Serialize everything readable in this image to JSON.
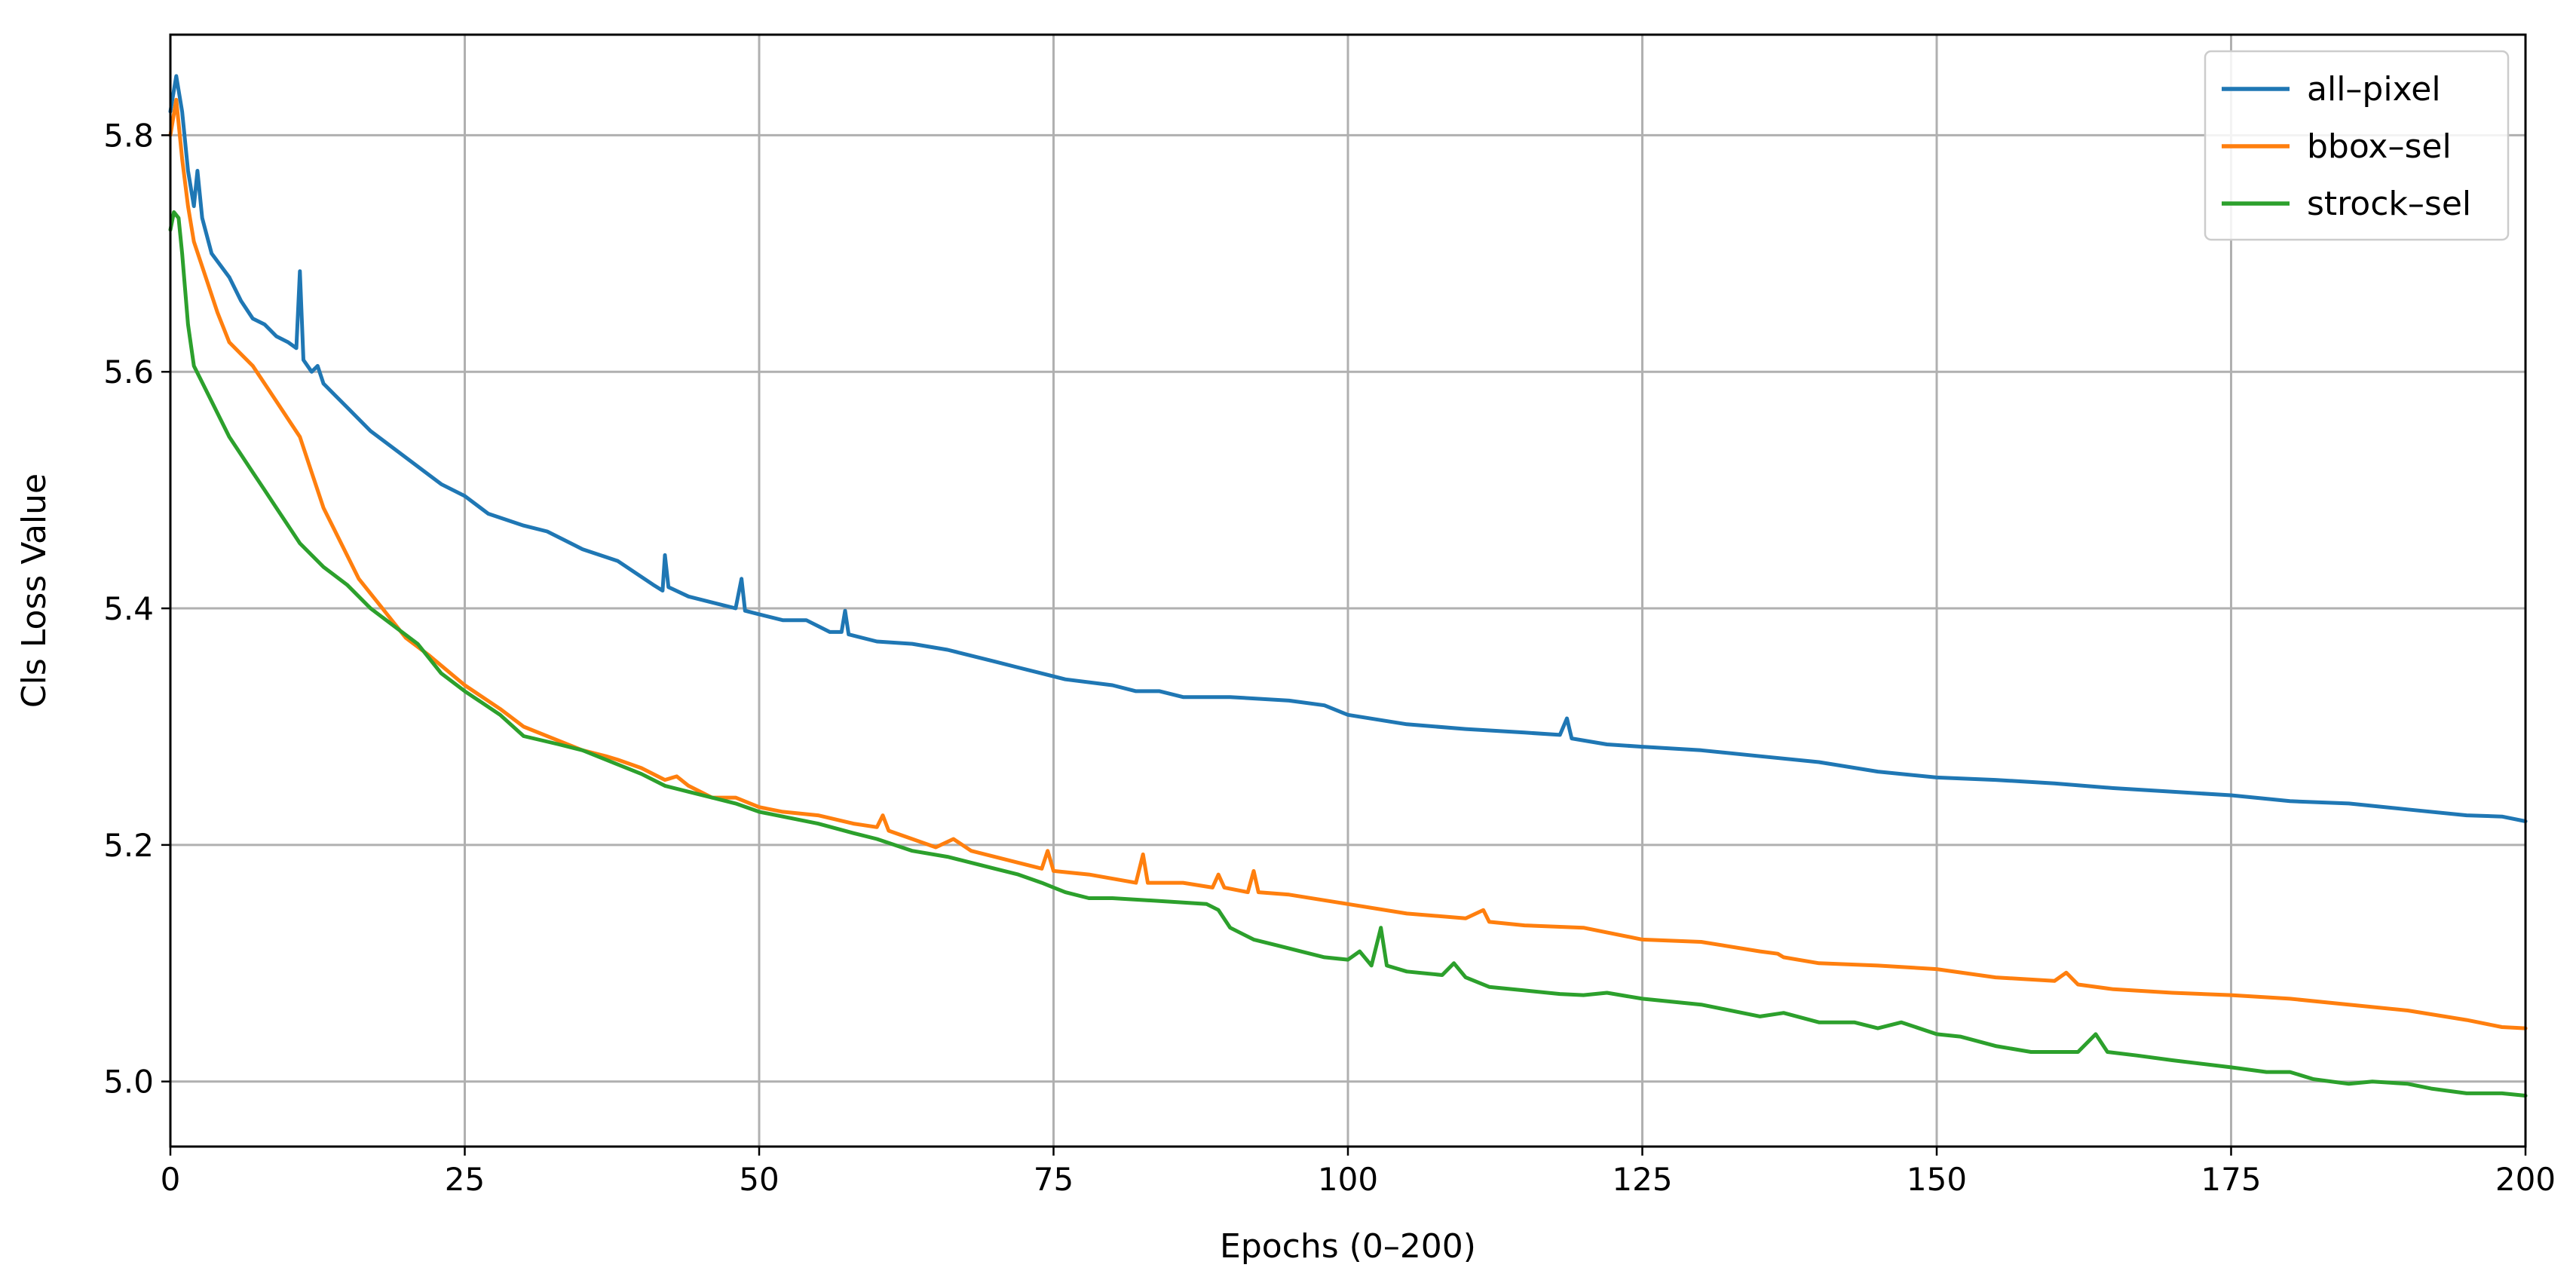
{
  "chart_data": {
    "type": "line",
    "title": "",
    "xlabel": "Epochs (0–200)",
    "ylabel": "Cls Loss Value",
    "xlim": [
      0,
      200
    ],
    "ylim": [
      4.945,
      5.885
    ],
    "xticks": [
      0,
      25,
      50,
      75,
      100,
      125,
      150,
      175,
      200
    ],
    "yticks": [
      5.0,
      5.2,
      5.4,
      5.6,
      5.8
    ],
    "xtick_labels": [
      "0",
      "25",
      "50",
      "75",
      "100",
      "125",
      "150",
      "175",
      "200"
    ],
    "ytick_labels": [
      "5.0",
      "5.2",
      "5.4",
      "5.6",
      "5.8"
    ],
    "grid": true,
    "legend_position": "top-right",
    "series": [
      {
        "name": "all–pixel",
        "color": "#1f77b4",
        "points": [
          [
            0,
            5.82
          ],
          [
            0.5,
            5.85
          ],
          [
            1,
            5.82
          ],
          [
            1.5,
            5.77
          ],
          [
            2,
            5.74
          ],
          [
            2.3,
            5.77
          ],
          [
            2.7,
            5.73
          ],
          [
            3.5,
            5.7
          ],
          [
            5,
            5.68
          ],
          [
            6,
            5.66
          ],
          [
            7,
            5.645
          ],
          [
            8,
            5.64
          ],
          [
            9,
            5.63
          ],
          [
            10,
            5.625
          ],
          [
            10.7,
            5.62
          ],
          [
            11,
            5.685
          ],
          [
            11.3,
            5.61
          ],
          [
            12,
            5.6
          ],
          [
            12.5,
            5.605
          ],
          [
            13,
            5.59
          ],
          [
            14,
            5.58
          ],
          [
            15,
            5.57
          ],
          [
            17,
            5.55
          ],
          [
            19,
            5.535
          ],
          [
            21,
            5.52
          ],
          [
            23,
            5.505
          ],
          [
            25,
            5.495
          ],
          [
            27,
            5.48
          ],
          [
            30,
            5.47
          ],
          [
            32,
            5.465
          ],
          [
            35,
            5.45
          ],
          [
            38,
            5.44
          ],
          [
            41,
            5.42
          ],
          [
            41.8,
            5.415
          ],
          [
            42,
            5.445
          ],
          [
            42.3,
            5.418
          ],
          [
            44,
            5.41
          ],
          [
            46,
            5.405
          ],
          [
            48,
            5.4
          ],
          [
            48.5,
            5.425
          ],
          [
            48.8,
            5.398
          ],
          [
            50,
            5.395
          ],
          [
            52,
            5.39
          ],
          [
            54,
            5.39
          ],
          [
            56,
            5.38
          ],
          [
            57,
            5.38
          ],
          [
            57.3,
            5.398
          ],
          [
            57.6,
            5.378
          ],
          [
            60,
            5.372
          ],
          [
            63,
            5.37
          ],
          [
            66,
            5.365
          ],
          [
            68,
            5.36
          ],
          [
            70,
            5.355
          ],
          [
            72,
            5.35
          ],
          [
            74,
            5.345
          ],
          [
            76,
            5.34
          ],
          [
            80,
            5.335
          ],
          [
            82,
            5.33
          ],
          [
            84,
            5.33
          ],
          [
            86,
            5.325
          ],
          [
            90,
            5.325
          ],
          [
            95,
            5.322
          ],
          [
            98,
            5.318
          ],
          [
            100,
            5.31
          ],
          [
            105,
            5.302
          ],
          [
            110,
            5.298
          ],
          [
            115,
            5.295
          ],
          [
            118,
            5.293
          ],
          [
            118.6,
            5.307
          ],
          [
            119,
            5.29
          ],
          [
            122,
            5.285
          ],
          [
            125,
            5.283
          ],
          [
            130,
            5.28
          ],
          [
            135,
            5.275
          ],
          [
            140,
            5.27
          ],
          [
            145,
            5.262
          ],
          [
            150,
            5.257
          ],
          [
            155,
            5.255
          ],
          [
            160,
            5.252
          ],
          [
            165,
            5.248
          ],
          [
            170,
            5.245
          ],
          [
            175,
            5.242
          ],
          [
            180,
            5.237
          ],
          [
            185,
            5.235
          ],
          [
            190,
            5.23
          ],
          [
            195,
            5.225
          ],
          [
            198,
            5.224
          ],
          [
            200,
            5.22
          ]
        ]
      },
      {
        "name": "bbox–sel",
        "color": "#ff7f0e",
        "points": [
          [
            0,
            5.8
          ],
          [
            0.5,
            5.83
          ],
          [
            1,
            5.78
          ],
          [
            1.5,
            5.74
          ],
          [
            2,
            5.71
          ],
          [
            3,
            5.68
          ],
          [
            4,
            5.65
          ],
          [
            5,
            5.625
          ],
          [
            6,
            5.615
          ],
          [
            7,
            5.605
          ],
          [
            8,
            5.59
          ],
          [
            9,
            5.575
          ],
          [
            10,
            5.56
          ],
          [
            11,
            5.545
          ],
          [
            12,
            5.515
          ],
          [
            13,
            5.485
          ],
          [
            14,
            5.465
          ],
          [
            15,
            5.445
          ],
          [
            16,
            5.425
          ],
          [
            18,
            5.4
          ],
          [
            20,
            5.375
          ],
          [
            22,
            5.36
          ],
          [
            25,
            5.335
          ],
          [
            28,
            5.315
          ],
          [
            30,
            5.3
          ],
          [
            33,
            5.288
          ],
          [
            35,
            5.28
          ],
          [
            37,
            5.275
          ],
          [
            38,
            5.272
          ],
          [
            40,
            5.265
          ],
          [
            42,
            5.255
          ],
          [
            43,
            5.258
          ],
          [
            44,
            5.25
          ],
          [
            46,
            5.24
          ],
          [
            48,
            5.24
          ],
          [
            50,
            5.232
          ],
          [
            52,
            5.228
          ],
          [
            55,
            5.225
          ],
          [
            58,
            5.218
          ],
          [
            60,
            5.215
          ],
          [
            60.5,
            5.225
          ],
          [
            61,
            5.212
          ],
          [
            63,
            5.205
          ],
          [
            65,
            5.198
          ],
          [
            66.5,
            5.205
          ],
          [
            68,
            5.195
          ],
          [
            70,
            5.19
          ],
          [
            72,
            5.185
          ],
          [
            74,
            5.18
          ],
          [
            74.5,
            5.195
          ],
          [
            75,
            5.178
          ],
          [
            78,
            5.175
          ],
          [
            82,
            5.168
          ],
          [
            82.6,
            5.192
          ],
          [
            83,
            5.168
          ],
          [
            86,
            5.168
          ],
          [
            88.5,
            5.164
          ],
          [
            89,
            5.175
          ],
          [
            89.5,
            5.164
          ],
          [
            91.5,
            5.16
          ],
          [
            92,
            5.178
          ],
          [
            92.4,
            5.16
          ],
          [
            95,
            5.158
          ],
          [
            100,
            5.15
          ],
          [
            105,
            5.142
          ],
          [
            110,
            5.138
          ],
          [
            111.5,
            5.145
          ],
          [
            112,
            5.135
          ],
          [
            115,
            5.132
          ],
          [
            120,
            5.13
          ],
          [
            125,
            5.12
          ],
          [
            130,
            5.118
          ],
          [
            135,
            5.11
          ],
          [
            136.5,
            5.108
          ],
          [
            137,
            5.105
          ],
          [
            140,
            5.1
          ],
          [
            145,
            5.098
          ],
          [
            150,
            5.095
          ],
          [
            155,
            5.088
          ],
          [
            160,
            5.085
          ],
          [
            161,
            5.092
          ],
          [
            162,
            5.082
          ],
          [
            165,
            5.078
          ],
          [
            170,
            5.075
          ],
          [
            175,
            5.073
          ],
          [
            180,
            5.07
          ],
          [
            185,
            5.065
          ],
          [
            190,
            5.06
          ],
          [
            195,
            5.052
          ],
          [
            198,
            5.046
          ],
          [
            200,
            5.045
          ]
        ]
      },
      {
        "name": "strock–sel",
        "color": "#2ca02c",
        "points": [
          [
            0,
            5.72
          ],
          [
            0.3,
            5.735
          ],
          [
            0.7,
            5.73
          ],
          [
            1,
            5.7
          ],
          [
            1.5,
            5.64
          ],
          [
            2,
            5.605
          ],
          [
            3,
            5.585
          ],
          [
            4,
            5.565
          ],
          [
            5,
            5.545
          ],
          [
            6,
            5.53
          ],
          [
            7,
            5.515
          ],
          [
            8,
            5.5
          ],
          [
            9,
            5.485
          ],
          [
            10,
            5.47
          ],
          [
            11,
            5.455
          ],
          [
            12,
            5.445
          ],
          [
            13,
            5.435
          ],
          [
            15,
            5.42
          ],
          [
            17,
            5.4
          ],
          [
            19,
            5.385
          ],
          [
            21,
            5.37
          ],
          [
            23,
            5.345
          ],
          [
            25,
            5.33
          ],
          [
            28,
            5.31
          ],
          [
            30,
            5.292
          ],
          [
            33,
            5.285
          ],
          [
            35,
            5.28
          ],
          [
            38,
            5.268
          ],
          [
            40,
            5.26
          ],
          [
            42,
            5.25
          ],
          [
            44,
            5.245
          ],
          [
            46,
            5.24
          ],
          [
            48,
            5.235
          ],
          [
            50,
            5.228
          ],
          [
            52,
            5.224
          ],
          [
            55,
            5.218
          ],
          [
            58,
            5.21
          ],
          [
            60,
            5.205
          ],
          [
            63,
            5.195
          ],
          [
            66,
            5.19
          ],
          [
            68,
            5.185
          ],
          [
            70,
            5.18
          ],
          [
            72,
            5.175
          ],
          [
            74,
            5.168
          ],
          [
            76,
            5.16
          ],
          [
            78,
            5.155
          ],
          [
            80,
            5.155
          ],
          [
            85,
            5.152
          ],
          [
            88,
            5.15
          ],
          [
            89,
            5.145
          ],
          [
            90,
            5.13
          ],
          [
            92,
            5.12
          ],
          [
            94,
            5.115
          ],
          [
            96,
            5.11
          ],
          [
            98,
            5.105
          ],
          [
            100,
            5.103
          ],
          [
            101,
            5.11
          ],
          [
            102,
            5.098
          ],
          [
            102.8,
            5.13
          ],
          [
            103.3,
            5.098
          ],
          [
            105,
            5.093
          ],
          [
            108,
            5.09
          ],
          [
            109,
            5.1
          ],
          [
            110,
            5.088
          ],
          [
            112,
            5.08
          ],
          [
            115,
            5.077
          ],
          [
            118,
            5.074
          ],
          [
            120,
            5.073
          ],
          [
            122,
            5.075
          ],
          [
            125,
            5.07
          ],
          [
            130,
            5.065
          ],
          [
            135,
            5.055
          ],
          [
            137,
            5.058
          ],
          [
            140,
            5.05
          ],
          [
            143,
            5.05
          ],
          [
            145,
            5.045
          ],
          [
            147,
            5.05
          ],
          [
            150,
            5.04
          ],
          [
            152,
            5.038
          ],
          [
            155,
            5.03
          ],
          [
            158,
            5.025
          ],
          [
            162,
            5.025
          ],
          [
            163.5,
            5.04
          ],
          [
            164.5,
            5.025
          ],
          [
            167,
            5.022
          ],
          [
            170,
            5.018
          ],
          [
            175,
            5.012
          ],
          [
            178,
            5.008
          ],
          [
            180,
            5.008
          ],
          [
            182,
            5.002
          ],
          [
            185,
            4.998
          ],
          [
            187,
            5.0
          ],
          [
            190,
            4.998
          ],
          [
            192,
            4.994
          ],
          [
            195,
            4.99
          ],
          [
            198,
            4.99
          ],
          [
            200,
            4.988
          ]
        ]
      }
    ]
  }
}
